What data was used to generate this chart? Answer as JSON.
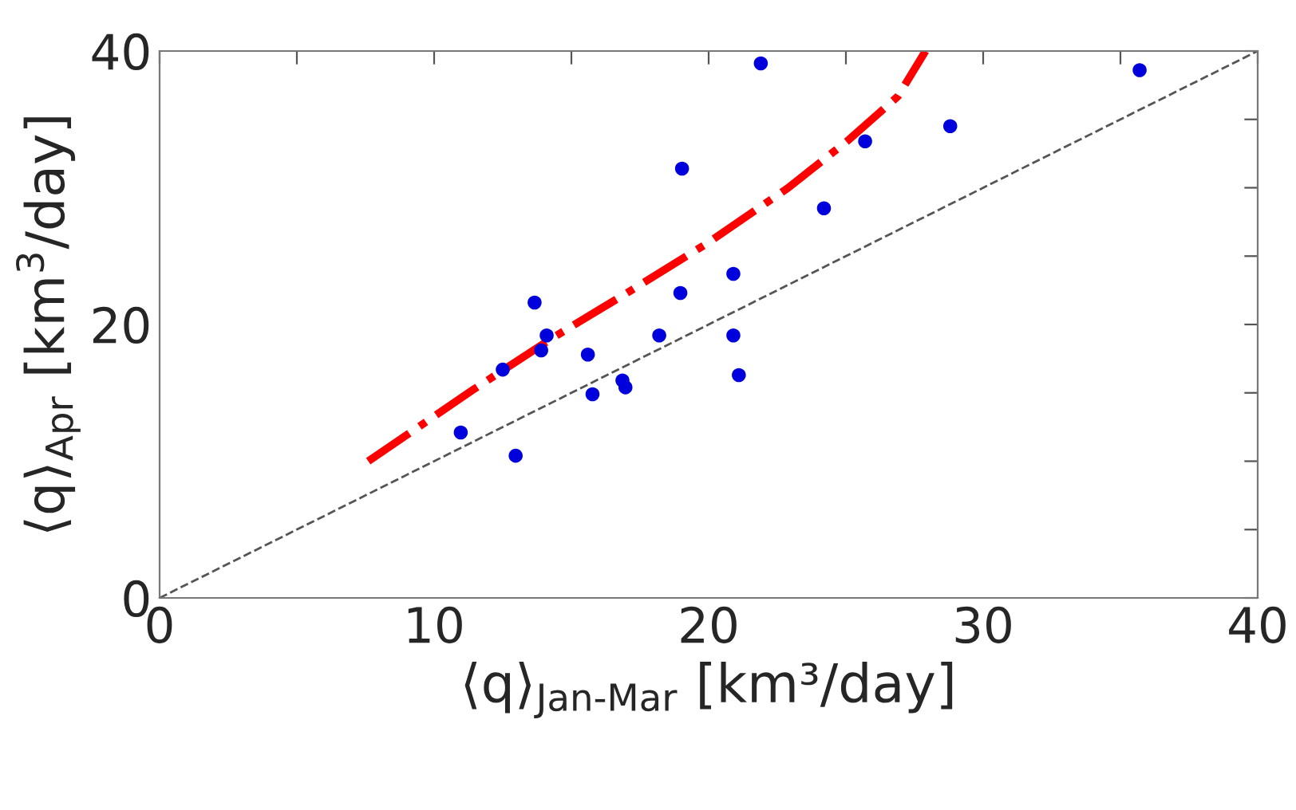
{
  "chart_data": {
    "type": "scatter",
    "xlabel": "⟨q⟩$_{Jan-Mar}$ [km³/day]",
    "ylabel": "⟨q⟩$_{Apr}$ [km$^{3}$/day]",
    "xlim": [
      0,
      40
    ],
    "ylim": [
      0,
      40
    ],
    "xticks": [
      0,
      {
        "value": 5,
        "label": null
      },
      10,
      {
        "value": 15,
        "label": null
      },
      20,
      {
        "value": 25,
        "label": null
      },
      30,
      {
        "value": 35,
        "label": null
      },
      40
    ],
    "yticks": [
      0,
      {
        "value": 5,
        "label": null
      },
      {
        "value": 10,
        "label": null
      },
      {
        "value": 15,
        "label": null
      },
      20,
      {
        "value": 25,
        "label": null
      },
      {
        "value": 30,
        "label": null
      },
      {
        "value": 35,
        "label": null
      },
      40
    ],
    "grid": false,
    "legend": false,
    "series": [
      {
        "color": "#0000dd",
        "marker": "circle",
        "x": [
          10.97,
          12.5,
          12.97,
          13.66,
          14.1,
          13.9,
          15.6,
          15.77,
          16.86,
          16.97,
          18.2,
          18.97,
          19.03,
          20.9,
          20.9,
          21.1,
          21.9,
          24.2,
          25.7,
          28.8,
          35.7
        ],
        "values": [
          12.1,
          16.7,
          10.4,
          21.6,
          19.2,
          18.1,
          17.8,
          14.9,
          15.9,
          15.4,
          19.2,
          22.3,
          31.4,
          23.7,
          19.2,
          16.3,
          39.1,
          28.5,
          33.4,
          34.5,
          38.6
        ]
      },
      {
        "type": "line",
        "color": "#555555",
        "line_style": "dashed",
        "x": [
          0,
          40
        ],
        "values": [
          0,
          40
        ]
      },
      {
        "type": "line",
        "color": "#ff0000",
        "line_style": "dashdot",
        "x": [
          7.6,
          11.4,
          14.3,
          17.1,
          20,
          22.9,
          25.1,
          26.9,
          27.9
        ],
        "values": [
          10.0,
          15.2,
          19.0,
          22.4,
          26.0,
          30.0,
          33.5,
          36.7,
          40
        ]
      }
    ]
  }
}
